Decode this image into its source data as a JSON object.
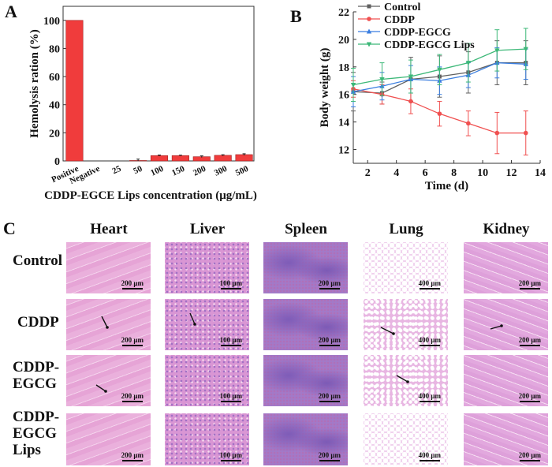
{
  "panels": {
    "a": "A",
    "b": "B",
    "c": "C"
  },
  "chart_data": [
    {
      "type": "bar",
      "panel": "A",
      "categories": [
        "Positive",
        "Negative",
        "25",
        "50",
        "100",
        "150",
        "200",
        "300",
        "500"
      ],
      "values": [
        100,
        0,
        0,
        0.3,
        3.8,
        3.8,
        3.0,
        4.0,
        4.5
      ],
      "errors": [
        0,
        0,
        0,
        1.0,
        0.4,
        0.3,
        0.6,
        0.4,
        0.6
      ],
      "xlabel": "CDDP-EGCE Lips concentration (μg/mL)",
      "ylabel": "Hemolysis ration (%)",
      "ylim": [
        0,
        110
      ],
      "yticks": [
        0,
        20,
        40,
        60,
        80,
        100
      ],
      "bar_color": "#f03c3c",
      "grid": false
    },
    {
      "type": "line",
      "panel": "B",
      "x": [
        1,
        3,
        5,
        7,
        9,
        11,
        13
      ],
      "xlabel": "Time (d)",
      "ylabel": "Body weight (g)",
      "xlim": [
        1,
        14
      ],
      "ylim": [
        11,
        22
      ],
      "xticks": [
        2,
        4,
        6,
        8,
        10,
        12,
        14
      ],
      "yticks": [
        12,
        14,
        16,
        18,
        20,
        22
      ],
      "legend": "top-left",
      "grid": false,
      "series": [
        {
          "name": "Control",
          "color": "#606060",
          "marker": "square",
          "values": [
            16.2,
            16.1,
            17.1,
            17.3,
            17.6,
            18.3,
            18.3
          ],
          "errors": [
            1.4,
            0.8,
            1.6,
            1.5,
            1.5,
            1.6,
            1.6
          ]
        },
        {
          "name": "CDDP",
          "color": "#f05050",
          "marker": "circle",
          "values": [
            16.4,
            16.0,
            15.5,
            14.6,
            13.9,
            13.2,
            13.2
          ],
          "errors": [
            0.6,
            0.7,
            0.9,
            0.9,
            0.9,
            1.5,
            1.6
          ]
        },
        {
          "name": "CDDP-EGCG",
          "color": "#3a7ee0",
          "marker": "triangle-up",
          "values": [
            16.2,
            16.6,
            17.1,
            17.0,
            17.4,
            18.3,
            18.2
          ],
          "errors": [
            1.1,
            1.0,
            1.0,
            1.0,
            0.9,
            1.1,
            1.1
          ]
        },
        {
          "name": "CDDP-EGCG Lips",
          "color": "#3cb878",
          "marker": "triangle-down",
          "values": [
            16.7,
            17.1,
            17.3,
            17.8,
            18.3,
            19.2,
            19.3
          ],
          "errors": [
            1.2,
            1.2,
            1.2,
            1.1,
            1.4,
            1.5,
            1.5
          ]
        }
      ]
    }
  ],
  "histology": {
    "columns": [
      "Heart",
      "Liver",
      "Spleen",
      "Lung",
      "Kidney"
    ],
    "rows": [
      "Control",
      "CDDP",
      "CDDP-\nEGCG",
      "CDDP-\nEGCG\nLips"
    ],
    "scale_bars": [
      "200 μm",
      "100 μm",
      "200 μm",
      "400 μm",
      "200 μm"
    ]
  }
}
